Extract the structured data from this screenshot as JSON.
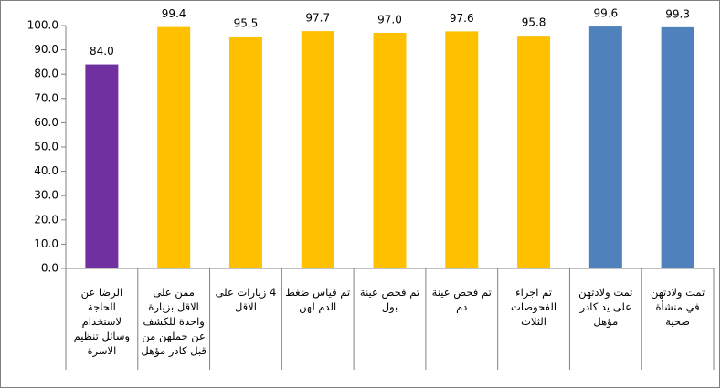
{
  "chart_data": {
    "type": "bar",
    "categories": [
      "الرضا عن الحاجة لاستخدام وسائل تنظيم الاسرة",
      "ممن على الاقل بزيارة واحدة للكشف عن حملهن من قبل كادر مؤهل",
      "4 زيارات على الاقل",
      "تم قياس ضغط الدم لهن",
      "تم فحص عينة بول",
      "تم فحص عينة دم",
      "تم اجراء الفحوصات الثلاث",
      "تمت ولادتهن على يد كادر مؤهل",
      "تمت ولادتهن في منشأة صحية"
    ],
    "values": [
      84.0,
      99.4,
      95.5,
      97.7,
      97.0,
      97.6,
      95.8,
      99.6,
      99.3
    ],
    "value_labels": [
      "84.0",
      "99.4",
      "95.5",
      "97.7",
      "97.0",
      "97.6",
      "95.8",
      "99.6",
      "99.3"
    ],
    "colors": [
      "#7030a0",
      "#ffc000",
      "#ffc000",
      "#ffc000",
      "#ffc000",
      "#ffc000",
      "#ffc000",
      "#4f81bd",
      "#4f81bd"
    ],
    "ylim": [
      0,
      100
    ],
    "yticks": [
      {
        "value": 0,
        "label": "0.0"
      },
      {
        "value": 10,
        "label": "10.0"
      },
      {
        "value": 20,
        "label": "20.0"
      },
      {
        "value": 30,
        "label": "30.0"
      },
      {
        "value": 40,
        "label": "40.0"
      },
      {
        "value": 50,
        "label": "50.0"
      },
      {
        "value": 60,
        "label": "60.0"
      },
      {
        "value": 70,
        "label": "70.0"
      },
      {
        "value": 80,
        "label": "80.0"
      },
      {
        "value": 90,
        "label": "90.0"
      },
      {
        "value": 100,
        "label": "100.0"
      }
    ]
  }
}
